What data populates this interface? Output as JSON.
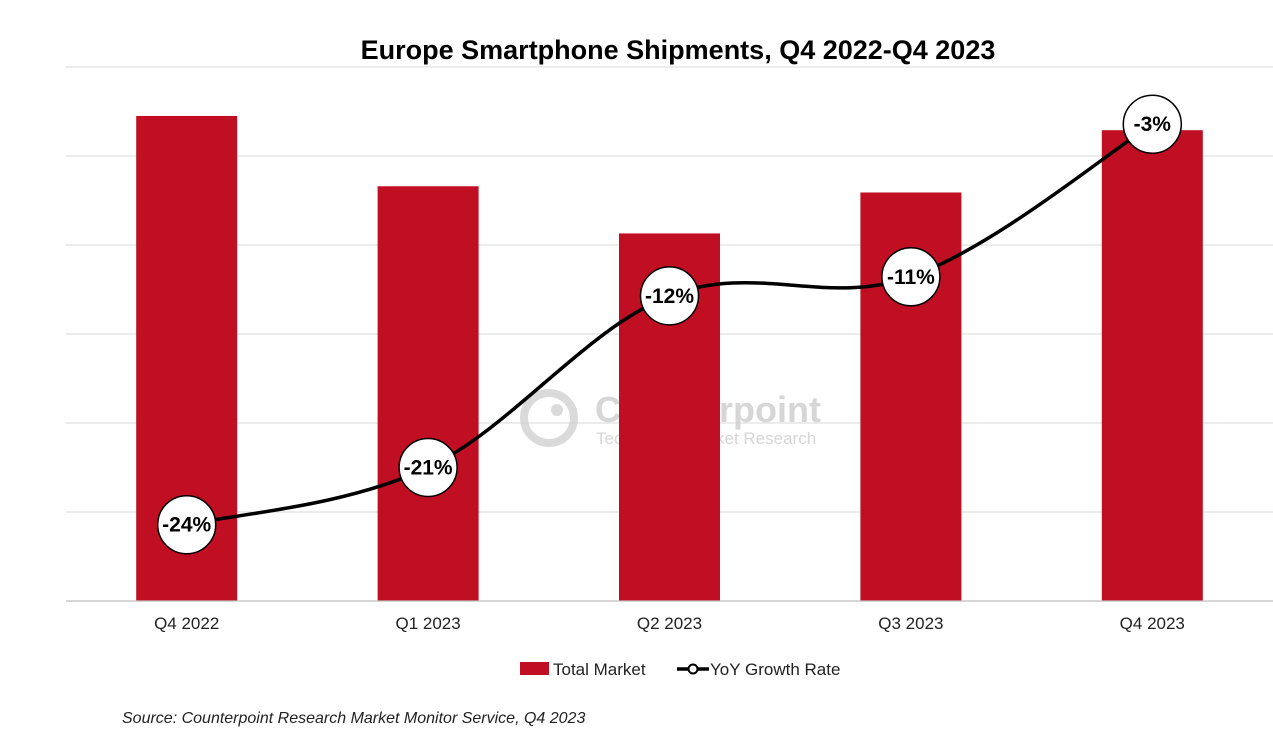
{
  "chart_data": {
    "type": "bar",
    "title": "Europe Smartphone Shipments, Q4 2022-Q4 2023",
    "categories": [
      "Q4 2022",
      "Q1 2023",
      "Q2 2023",
      "Q3 2023",
      "Q4 2023"
    ],
    "series": [
      {
        "name": "Total Market",
        "type": "bar",
        "color": "#C00F22",
        "values": [
          54.5,
          46.6,
          41.3,
          45.9,
          52.9
        ]
      },
      {
        "name": "YoY Growth Rate",
        "type": "line",
        "color": "#000000",
        "values": [
          -24,
          -21,
          -12,
          -11,
          -3
        ],
        "labels": [
          "-24%",
          "-21%",
          "-12%",
          "-11%",
          "-3%"
        ]
      }
    ],
    "bar_ylim": [
      0,
      60
    ],
    "line_ylim": [
      -28,
      0
    ],
    "grid": true,
    "legend": [
      "Total Market",
      "YoY Growth Rate"
    ],
    "legend_position": "bottom"
  },
  "source": "Source: Counterpoint Research Market Monitor Service, Q4 2023",
  "watermark": {
    "brand": "Counterpoint",
    "tagline": "Technology Market Research"
  }
}
